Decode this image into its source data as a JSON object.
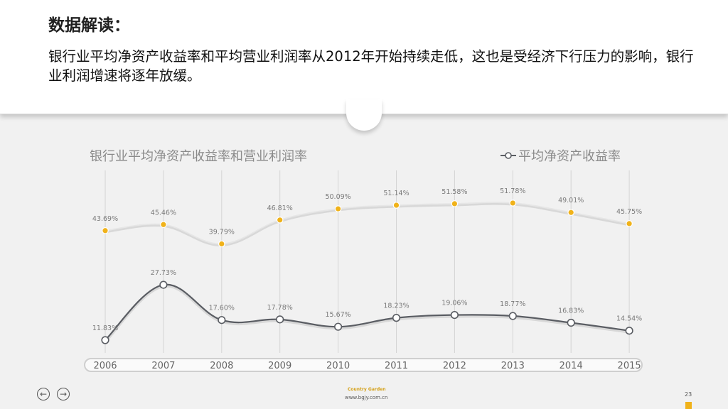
{
  "header": {
    "title": "数据解读：",
    "paragraph": "银行业平均净资产收益率和平均营业利润率从2012年开始持续走低，这也是受经济下行压力的影响，银行业利润增速将逐年放缓。"
  },
  "chart_data": {
    "type": "line",
    "title": "银行业平均净资产收益率和营业利润率",
    "categories": [
      "2006",
      "2007",
      "2008",
      "2009",
      "2010",
      "2011",
      "2012",
      "2013",
      "2014",
      "2015"
    ],
    "series": [
      {
        "name": "",
        "values": [
          43.69,
          45.46,
          39.79,
          46.81,
          50.09,
          51.14,
          51.58,
          51.78,
          49.01,
          45.75
        ],
        "labels": [
          "43.69%",
          "45.46%",
          "39.79%",
          "46.81%",
          "50.09%",
          "51.14%",
          "51.58%",
          "51.78%",
          "49.01%",
          "45.75%"
        ],
        "color": "#f0b21a",
        "line_color": "#e6e6e6"
      },
      {
        "name": "平均净资产收益率",
        "values": [
          11.83,
          27.73,
          17.6,
          17.78,
          15.67,
          18.23,
          19.06,
          18.77,
          16.83,
          14.54
        ],
        "labels": [
          "11.83%",
          "27.73%",
          "17.60%",
          "17.78%",
          "15.67%",
          "18.23%",
          "19.06%",
          "18.77%",
          "16.83%",
          "14.54%"
        ],
        "color": "#ffffff",
        "line_color": "#5a5d63"
      }
    ],
    "legend": "top-right",
    "grid": true
  },
  "footer": {
    "brand": "Country Garden",
    "url": "www.bgjy.com.cn",
    "page": "23",
    "prev_icon": "arrow-left-icon",
    "next_icon": "arrow-right-icon"
  }
}
